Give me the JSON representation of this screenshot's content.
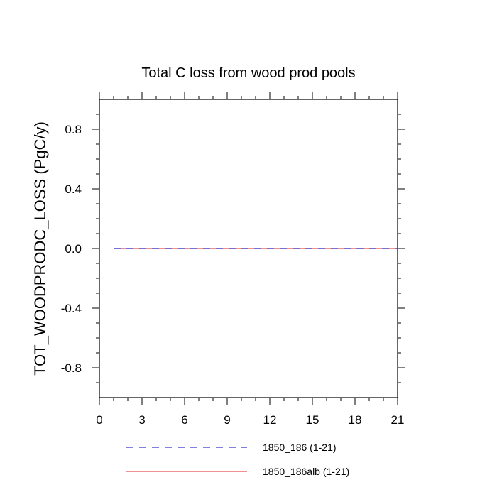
{
  "chart_data": {
    "type": "line",
    "title": "Total C loss from wood prod pools",
    "xlabel": "",
    "ylabel": "TOT_WOODPRODC_LOSS  (PgC/y)",
    "xlim": [
      0,
      21
    ],
    "ylim": [
      -1.0,
      1.0
    ],
    "xticks": [
      0,
      3,
      6,
      9,
      12,
      15,
      18,
      21
    ],
    "xtick_labels": [
      "0",
      "3",
      "6",
      "9",
      "12",
      "15",
      "18",
      "21"
    ],
    "yticks": [
      -0.8,
      -0.4,
      0.0,
      0.4,
      0.8
    ],
    "ytick_labels": [
      "-0.8",
      "-0.4",
      "0.0",
      "0.4",
      "0.8"
    ],
    "grid": false,
    "legend_position": "bottom",
    "x": [
      1,
      2,
      3,
      4,
      5,
      6,
      7,
      8,
      9,
      10,
      11,
      12,
      13,
      14,
      15,
      16,
      17,
      18,
      19,
      20,
      21
    ],
    "series": [
      {
        "name": "1850_186 (1-21)",
        "color": "#3333cc",
        "dash": "dashed",
        "values": [
          0,
          0,
          0,
          0,
          0,
          0,
          0,
          0,
          0,
          0,
          0,
          0,
          0,
          0,
          0,
          0,
          0,
          0,
          0,
          0,
          0
        ]
      },
      {
        "name": "1850_186alb (1-21)",
        "color": "#e64d4d",
        "dash": "solid",
        "values": [
          0,
          0,
          0,
          0,
          0,
          0,
          0,
          0,
          0,
          0,
          0,
          0,
          0,
          0,
          0,
          0,
          0,
          0,
          0,
          0,
          0
        ]
      }
    ]
  }
}
